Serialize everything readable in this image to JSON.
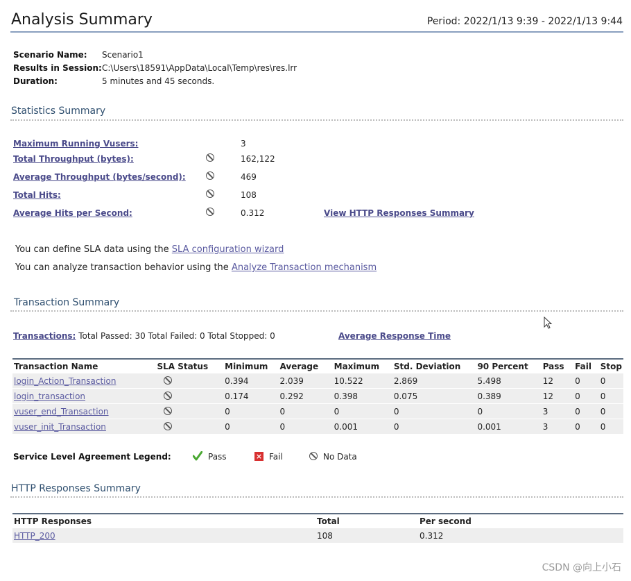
{
  "header": {
    "title": "Analysis Summary",
    "period": "Period: 2022/1/13 9:39 - 2022/1/13 9:44"
  },
  "scenario": {
    "name_label": "Scenario Name:",
    "name_value": "Scenario1",
    "session_label": "Results in Session:",
    "session_value": "C:\\Users\\18591\\AppData\\Local\\Temp\\res\\res.lrr",
    "duration_label": "Duration:",
    "duration_value": "5 minutes and 45 seconds."
  },
  "statistics": {
    "title": "Statistics Summary",
    "rows": [
      {
        "label": "Maximum Running Vusers:",
        "value": "3",
        "icon": false
      },
      {
        "label": "Total Throughput (bytes):",
        "value": "162,122",
        "icon": true
      },
      {
        "label": "Average Throughput (bytes/second):",
        "value": "469",
        "icon": true
      },
      {
        "label": "Total Hits:",
        "value": "108",
        "icon": true
      },
      {
        "label": "Average Hits per Second:",
        "value": "0.312",
        "icon": true
      }
    ],
    "http_link": "View HTTP Responses Summary"
  },
  "sla": {
    "line1_text": "You can define SLA data using the",
    "line1_link": "SLA configuration wizard",
    "line2_text": "You can analyze transaction behavior using the",
    "line2_link": "Analyze Transaction mechanism"
  },
  "transactions": {
    "title": "Transaction Summary",
    "link": "Transactions:",
    "totals": "Total Passed: 30 Total Failed: 0 Total Stopped: 0",
    "avg_link": "Average Response Time",
    "columns": [
      "Transaction Name",
      "SLA Status",
      "Minimum",
      "Average",
      "Maximum",
      "Std. Deviation",
      "90 Percent",
      "Pass",
      "Fail",
      "Stop"
    ],
    "rows": [
      {
        "name": "login_Action_Transaction",
        "min": "0.394",
        "avg": "2.039",
        "max": "10.522",
        "std": "2.869",
        "p90": "5.498",
        "pass": "12",
        "fail": "0",
        "stop": "0"
      },
      {
        "name": "login_transaction",
        "min": "0.174",
        "avg": "0.292",
        "max": "0.398",
        "std": "0.075",
        "p90": "0.389",
        "pass": "12",
        "fail": "0",
        "stop": "0"
      },
      {
        "name": "vuser_end_Transaction",
        "min": "0",
        "avg": "0",
        "max": "0",
        "std": "0",
        "p90": "0",
        "pass": "3",
        "fail": "0",
        "stop": "0"
      },
      {
        "name": "vuser_init_Transaction",
        "min": "0",
        "avg": "0",
        "max": "0.001",
        "std": "0",
        "p90": "0.001",
        "pass": "3",
        "fail": "0",
        "stop": "0"
      }
    ]
  },
  "legend": {
    "label": "Service Level Agreement Legend:",
    "pass": "Pass",
    "fail": "Fail",
    "nodata": "No Data",
    "pass_color": "#4aa832",
    "fail_color": "#d83030"
  },
  "http": {
    "title": "HTTP Responses Summary",
    "columns": [
      "HTTP Responses",
      "Total",
      "Per second"
    ],
    "rows": [
      {
        "code": "HTTP_200",
        "total": "108",
        "per_second": "0.312"
      }
    ]
  },
  "watermark": "CSDN @向上小石"
}
